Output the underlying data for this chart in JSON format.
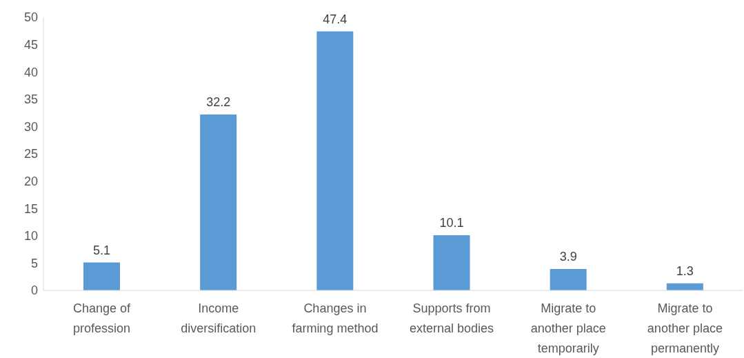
{
  "chart_data": {
    "type": "bar",
    "categories": [
      "Change of profession",
      "Income diversification",
      "Changes in farming method",
      "Supports from external bodies",
      "Migrate to another place temporarily",
      "Migrate to another place permanently"
    ],
    "values": [
      5.1,
      32.2,
      47.4,
      10.1,
      3.9,
      1.3
    ],
    "color": "#5b9bd5",
    "ylim": [
      0,
      50
    ],
    "yticks": [
      0,
      5,
      10,
      15,
      20,
      25,
      30,
      35,
      40,
      45,
      50
    ],
    "grid": false,
    "legend": false,
    "data_labels": true
  }
}
